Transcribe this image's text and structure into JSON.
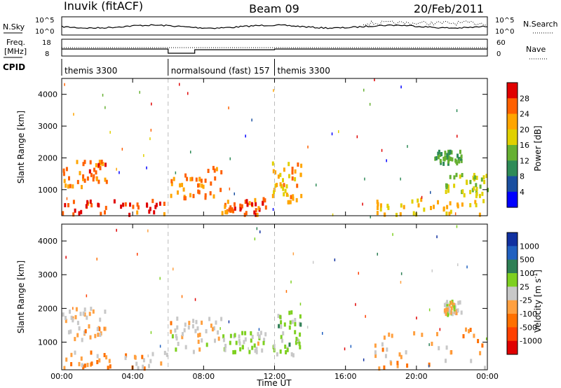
{
  "header": {
    "station": "Inuvik (fitACF)",
    "beam": "Beam 09",
    "date": "20/Feb/2011"
  },
  "labels": {
    "nsky": "N.Sky",
    "nsearch": "N.Search",
    "freq_line1": "Freq.",
    "freq_line2": "[MHz]",
    "nave": "Nave",
    "cpid": "CPID",
    "range_axis": "Slant Range [km]",
    "time_axis": "Time UT",
    "power_bar": "Power [dB]",
    "velocity_bar": "Velocity [m s",
    "velocity_exp": "-1",
    "velocity_close": "]"
  },
  "noise_axis_ticks": {
    "top": "10^5",
    "bottom": "10^0"
  },
  "freq_ticks": [
    "18",
    "8"
  ],
  "nave_ticks": [
    "60",
    "0"
  ],
  "cpid_segments": [
    {
      "label": "themis 3300",
      "start_hour": 0
    },
    {
      "label": "normalsound (fast) 157",
      "start_hour": 6
    },
    {
      "label": "themis 3300",
      "start_hour": 12
    }
  ],
  "colors": {
    "power_scale": [
      "#0000ff",
      "#1a4fa0",
      "#2e8b57",
      "#66b032",
      "#e0d000",
      "#ffa500",
      "#ff6000",
      "#e00000"
    ],
    "velocity_scale": [
      "#1030a0",
      "#2060c0",
      "#2e7f55",
      "#7ed020",
      "#c8c8c8",
      "#ffa040",
      "#ff7000",
      "#ff4000",
      "#e00000"
    ]
  },
  "chart_data": [
    {
      "type": "heatmap",
      "title": "Power",
      "ylabel": "Slant Range [km]",
      "xlim": [
        0,
        24
      ],
      "ylim": [
        180,
        4500
      ],
      "x_ticks": [
        "00:00",
        "04:00",
        "08:00",
        "12:00",
        "16:00",
        "20:00",
        "00:00"
      ],
      "y_ticks": [
        1000,
        2000,
        3000,
        4000
      ],
      "colorbar": {
        "label": "Power [dB]",
        "ticks": [
          "4",
          "8",
          "12",
          "16",
          "20",
          "24",
          "28"
        ],
        "range": [
          0,
          32
        ]
      },
      "regions": [
        {
          "x": [
            0.0,
            6.0
          ],
          "y": [
            200,
            650
          ],
          "level": 27
        },
        {
          "x": [
            0.0,
            2.5
          ],
          "y": [
            1050,
            2000
          ],
          "level": 25
        },
        {
          "x": [
            6.0,
            9.0
          ],
          "y": [
            700,
            1700
          ],
          "level": 24
        },
        {
          "x": [
            9.0,
            11.5
          ],
          "y": [
            200,
            700
          ],
          "level": 26
        },
        {
          "x": [
            11.8,
            13.5
          ],
          "y": [
            600,
            1900
          ],
          "level": 22
        },
        {
          "x": [
            17.5,
            24.0
          ],
          "y": [
            200,
            700
          ],
          "level": 20
        },
        {
          "x": [
            21.5,
            24.0
          ],
          "y": [
            800,
            1500
          ],
          "level": 16
        },
        {
          "x": [
            21.0,
            22.5
          ],
          "y": [
            1800,
            2200
          ],
          "level": 12
        }
      ]
    },
    {
      "type": "heatmap",
      "title": "Velocity",
      "ylabel": "Slant Range [km]",
      "xlabel": "Time UT",
      "xlim": [
        0,
        24
      ],
      "ylim": [
        180,
        4500
      ],
      "x_ticks": [
        "00:00",
        "04:00",
        "08:00",
        "12:00",
        "16:00",
        "20:00",
        "00:00"
      ],
      "y_ticks": [
        1000,
        2000,
        3000,
        4000
      ],
      "colorbar": {
        "label": "Velocity [m s-1]",
        "ticks": [
          "1000",
          "500",
          "100",
          "25",
          "-25",
          "-100",
          "-500",
          "-1000"
        ],
        "range": [
          -1500,
          1500
        ]
      },
      "regions": [
        {
          "x": [
            0.0,
            6.0
          ],
          "y": [
            200,
            700
          ],
          "level": -300
        },
        {
          "x": [
            0.0,
            2.5
          ],
          "y": [
            1050,
            2000
          ],
          "level": -200
        },
        {
          "x": [
            6.0,
            9.0
          ],
          "y": [
            700,
            1700
          ],
          "level": -150
        },
        {
          "x": [
            9.0,
            11.5
          ],
          "y": [
            700,
            1300
          ],
          "level": 150
        },
        {
          "x": [
            11.8,
            13.5
          ],
          "y": [
            600,
            1900
          ],
          "level": 200
        },
        {
          "x": [
            17.5,
            24.0
          ],
          "y": [
            200,
            1400
          ],
          "level": -300
        },
        {
          "x": [
            21.5,
            22.5
          ],
          "y": [
            1800,
            2200
          ],
          "level": 0
        }
      ]
    }
  ]
}
